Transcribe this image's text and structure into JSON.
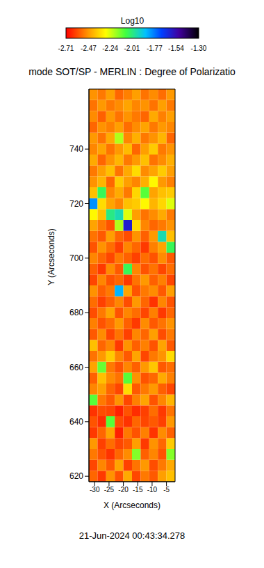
{
  "chart_data": {
    "type": "heatmap",
    "title": "mode SOT/SP - MERLIN : Degree of Polarizatio",
    "x_label": "X (Arcseconds)",
    "y_label": "Y (Arcseconds)",
    "annotation": "21-Jun-2024 00:43:34.278",
    "x": [
      -30.5,
      -27.5,
      -24.5,
      -21.5,
      -18.5,
      -15.5,
      -12.5,
      -9.5,
      -6.5,
      -3.5
    ],
    "y": [
      620,
      624,
      628,
      632,
      636,
      640,
      644,
      648,
      652,
      656,
      660,
      664,
      668,
      672,
      676,
      680,
      684,
      688,
      692,
      696,
      700,
      704,
      708,
      712,
      716,
      720,
      724,
      728,
      732,
      736,
      740,
      744,
      748,
      752,
      756,
      760
    ],
    "z": [
      [
        -2.55,
        -2.62,
        -2.48,
        -2.58,
        -2.44,
        -2.6,
        -2.52,
        -2.57,
        -2.46,
        -2.4
      ],
      [
        -2.6,
        -2.5,
        -2.57,
        -2.45,
        -2.61,
        -2.53,
        -2.47,
        -2.59,
        -2.52,
        -2.44
      ],
      [
        -2.52,
        -2.58,
        -2.63,
        -2.55,
        -2.49,
        -2.15,
        -2.56,
        -2.5,
        -2.58,
        -2.15
      ],
      [
        -2.47,
        -2.61,
        -2.54,
        -2.6,
        -2.57,
        -2.46,
        -2.62,
        -2.48,
        -2.55,
        -2.38
      ],
      [
        -2.62,
        -2.55,
        -2.45,
        -2.66,
        -2.52,
        -2.58,
        -2.51,
        -2.63,
        -2.49,
        -2.56
      ],
      [
        -2.58,
        -2.64,
        -2.1,
        -2.59,
        -2.63,
        -2.55,
        -2.6,
        -2.57,
        -2.61,
        -2.47
      ],
      [
        -2.63,
        -2.59,
        -2.6,
        -2.66,
        -2.58,
        -2.64,
        -2.61,
        -2.54,
        -2.62,
        -2.53
      ],
      [
        -2.1,
        -2.52,
        -2.57,
        -2.48,
        -2.6,
        -2.51,
        -2.45,
        -2.58,
        -2.5,
        -2.42
      ],
      [
        -2.5,
        -2.46,
        -2.55,
        -2.6,
        -2.35,
        -2.57,
        -2.52,
        -2.47,
        -2.56,
        -2.6
      ],
      [
        -2.56,
        -2.4,
        -2.49,
        -2.53,
        -2.1,
        -2.48,
        -2.58,
        -2.55,
        -2.44,
        -2.51
      ],
      [
        -2.45,
        -2.12,
        -2.52,
        -2.58,
        -2.5,
        -2.56,
        -2.47,
        -2.39,
        -2.57,
        -2.54
      ],
      [
        -2.53,
        -2.47,
        -2.38,
        -2.5,
        -2.57,
        -2.45,
        -2.6,
        -2.52,
        -2.48,
        -2.35
      ],
      [
        -2.4,
        -2.55,
        -2.5,
        -2.62,
        -2.48,
        -2.56,
        -2.51,
        -2.58,
        -2.45,
        -2.57
      ],
      [
        -2.57,
        -2.49,
        -2.6,
        -2.53,
        -2.61,
        -2.5,
        -2.55,
        -2.46,
        -2.59,
        -2.52
      ],
      [
        -2.51,
        -2.58,
        -2.54,
        -2.47,
        -2.56,
        -2.62,
        -2.49,
        -2.57,
        -2.53,
        -2.48
      ],
      [
        -2.59,
        -2.52,
        -2.45,
        -2.58,
        -2.5,
        -2.54,
        -2.6,
        -2.51,
        -2.62,
        -2.55
      ],
      [
        -2.54,
        -2.61,
        -2.56,
        -2.5,
        -2.59,
        -2.47,
        -2.55,
        -2.63,
        -2.5,
        -2.58
      ],
      [
        -2.48,
        -2.56,
        -2.52,
        -1.85,
        -2.45,
        -2.58,
        -2.52,
        -2.49,
        -2.57,
        -2.46
      ],
      [
        -2.6,
        -2.5,
        -2.58,
        -2.55,
        -2.62,
        -2.53,
        -2.47,
        -2.56,
        -2.51,
        -2.6
      ],
      [
        -2.56,
        -2.62,
        -2.49,
        -2.57,
        -2.05,
        -2.5,
        -2.58,
        -2.53,
        -2.6,
        -2.54
      ],
      [
        -2.5,
        -2.55,
        -2.6,
        -2.52,
        -2.56,
        -2.61,
        -2.54,
        -2.58,
        -2.49,
        -2.57
      ],
      [
        -2.58,
        -2.48,
        -2.54,
        -2.61,
        -2.5,
        -2.55,
        -2.62,
        -2.51,
        -2.45,
        -2.05
      ],
      [
        -2.53,
        -2.57,
        -2.46,
        -2.55,
        -2.59,
        -2.48,
        -2.56,
        -2.47,
        -1.95,
        -2.4
      ],
      [
        -2.45,
        -2.52,
        -2.58,
        -2.2,
        -1.6,
        -2.35,
        -2.5,
        -2.55,
        -2.52,
        -2.48
      ],
      [
        -2.3,
        -2.4,
        -2.0,
        -1.95,
        -2.25,
        -2.46,
        -2.53,
        -2.49,
        -2.44,
        -2.52
      ],
      [
        -1.8,
        -2.35,
        -2.45,
        -2.5,
        -2.4,
        -2.38,
        -2.3,
        -2.42,
        -2.36,
        -2.25
      ],
      [
        -2.4,
        -2.05,
        -2.5,
        -2.44,
        -2.52,
        -2.36,
        -2.1,
        -2.45,
        -2.4,
        -2.38
      ],
      [
        -2.48,
        -2.42,
        -2.55,
        -2.38,
        -2.46,
        -2.5,
        -2.43,
        -2.3,
        -2.47,
        -2.51
      ],
      [
        -2.52,
        -2.46,
        -2.4,
        -2.53,
        -2.44,
        -2.35,
        -2.49,
        -2.45,
        -2.38,
        -2.46
      ],
      [
        -2.44,
        -2.55,
        -2.48,
        -2.42,
        -2.52,
        -2.47,
        -2.4,
        -2.53,
        -2.49,
        -2.43
      ],
      [
        -2.5,
        -2.45,
        -2.53,
        -2.47,
        -2.41,
        -2.55,
        -2.46,
        -2.38,
        -2.52,
        -2.48
      ],
      [
        -2.47,
        -2.53,
        -2.44,
        -2.2,
        -2.5,
        -2.43,
        -2.52,
        -2.48,
        -2.42,
        -2.55
      ],
      [
        -2.55,
        -2.48,
        -2.51,
        -2.46,
        -2.54,
        -2.49,
        -2.45,
        -2.52,
        -2.47,
        -2.5
      ],
      [
        -2.49,
        -2.56,
        -2.47,
        -2.53,
        -2.48,
        -2.52,
        -2.55,
        -2.44,
        -2.51,
        -2.46
      ],
      [
        -2.53,
        -2.47,
        -2.52,
        -2.49,
        -2.45,
        -2.5,
        -2.48,
        -2.53,
        -2.46,
        -2.52
      ],
      [
        -2.48,
        -2.52,
        -2.46,
        -2.55,
        -2.51,
        -2.46,
        -2.53,
        -2.49,
        -2.54,
        -2.47
      ]
    ],
    "xlim": [
      -32,
      -2
    ],
    "ylim": [
      618,
      762
    ],
    "xticks": [
      -30,
      -25,
      -20,
      -15,
      -10,
      -5
    ],
    "yticks": [
      620,
      640,
      660,
      680,
      700,
      720,
      740
    ],
    "colorbar": {
      "label": "Log10",
      "range": [
        -2.71,
        -1.3
      ],
      "ticks": [
        -2.71,
        -2.47,
        -2.24,
        -2.01,
        -1.77,
        -1.54,
        {
          "value": -1.3,
          "label": "-1.30"
        }
      ]
    }
  }
}
